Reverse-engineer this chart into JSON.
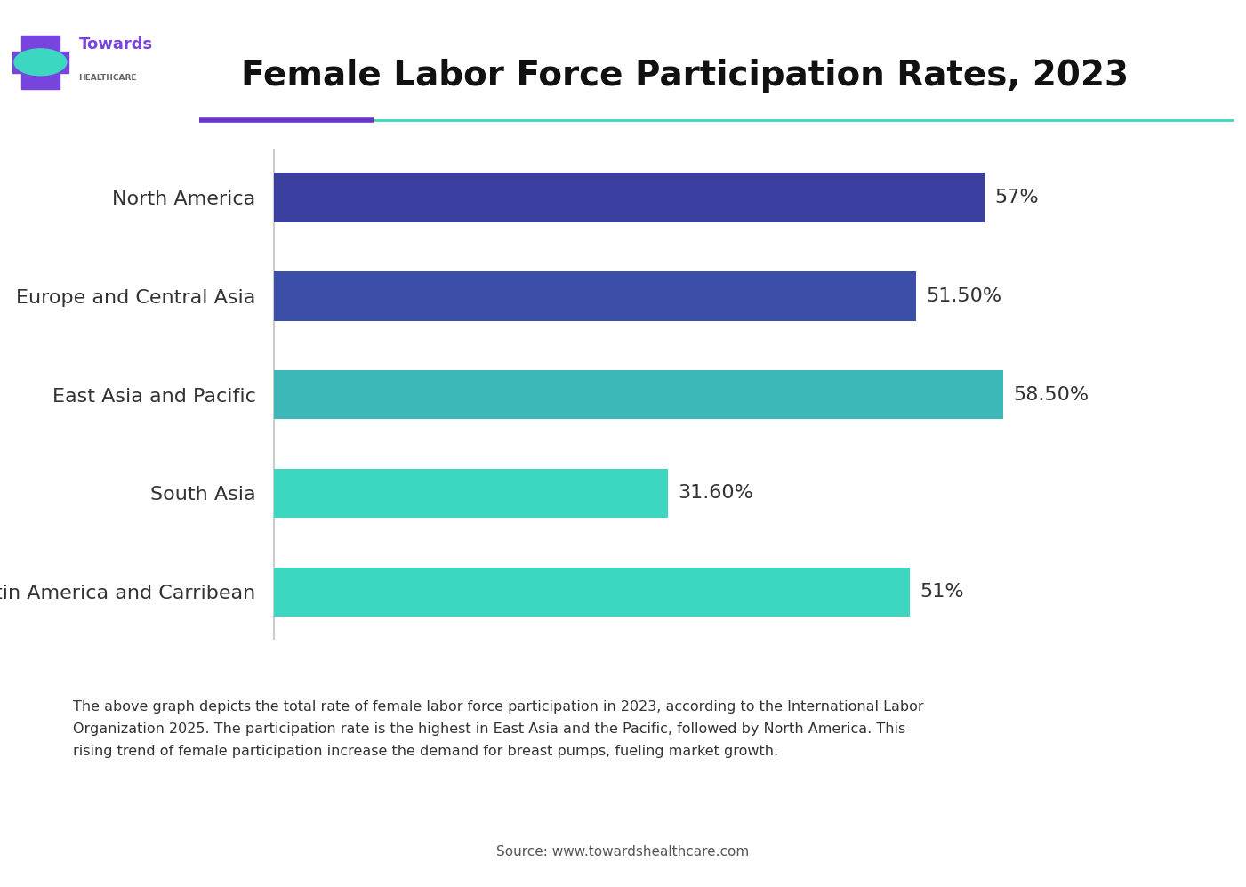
{
  "title": "Female Labor Force Participation Rates, 2023",
  "categories": [
    "Latin America and Carribean",
    "South Asia",
    "East Asia and Pacific",
    "Europe and Central Asia",
    "North America"
  ],
  "values": [
    51.0,
    31.6,
    58.5,
    51.5,
    57.0
  ],
  "value_labels": [
    "51%",
    "31.60%",
    "58.50%",
    "51.50%",
    "57%"
  ],
  "bar_colors": [
    "#3dd6c0",
    "#3dd6c0",
    "#3db8b8",
    "#3b4fa8",
    "#3b3fa0"
  ],
  "xlim": [
    0,
    70
  ],
  "background_color": "#ffffff",
  "title_fontsize": 28,
  "label_fontsize": 16,
  "value_fontsize": 16,
  "annotation_text": "The above graph depicts the total rate of female labor force participation in 2023, according to the International Labor\nOrganization 2025. The participation rate is the highest in East Asia and the Pacific, followed by North America. This\nrising trend of female participation increase the demand for breast pumps, fueling market growth.",
  "annotation_bg": "#e0f7f4",
  "source_text": "Source: www.towardshealthcare.com",
  "divider_purple": "#6633cc",
  "divider_teal": "#3dd6c0",
  "bar_height": 0.5,
  "logo_towards_color": "#7744dd",
  "logo_teal_color": "#3dd6c0",
  "logo_text_towards": "Towards",
  "logo_text_healthcare": "HEALTHCARE"
}
